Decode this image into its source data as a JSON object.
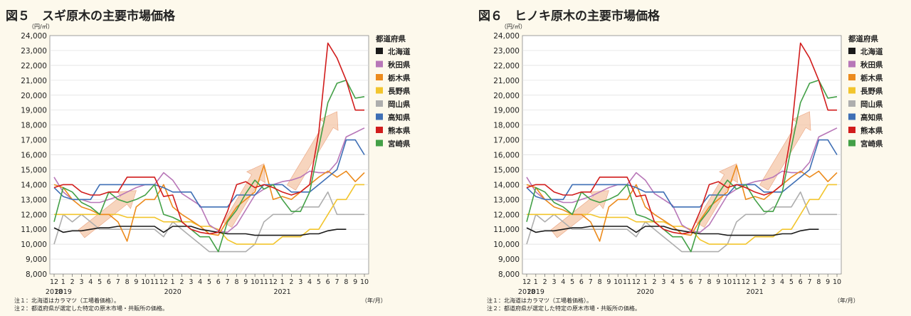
{
  "notes": [
    "注１：北海道はカラマツ（工場着価格）。",
    "注２：都道府県が選定した特定の原木市場・共販所の価格。"
  ],
  "colors": {
    "北海道": "#1a1a1a",
    "秋田県": "#b877b8",
    "栃木県": "#ec8b1d",
    "長野県": "#f2c52d",
    "岡山県": "#aeaeae",
    "高知県": "#3f6fb5",
    "熊本県": "#d11c1c",
    "宮崎県": "#43a047",
    "arrow": "#f4c7a8",
    "grid": "#dddddd"
  },
  "chart_data": [
    {
      "type": "line",
      "title": "図５　スギ原木の主要市場価格",
      "unit_label": "（円/㎥）",
      "xunit_label": "（年/月）",
      "legend_title": "都道府県",
      "legend_position": "right",
      "ylim": [
        8000,
        24000
      ],
      "yticks": [
        "8,000",
        "9,000",
        "10,000",
        "11,000",
        "12,000",
        "13,000",
        "14,000",
        "15,000",
        "16,000",
        "17,000",
        "18,000",
        "19,000",
        "20,000",
        "21,000",
        "22,000",
        "23,000",
        "24,000"
      ],
      "x_month_labels": [
        "12",
        "1",
        "2",
        "3",
        "4",
        "5",
        "6",
        "7",
        "8",
        "9",
        "10",
        "11",
        "12",
        "1",
        "2",
        "3",
        "4",
        "5",
        "6",
        "7",
        "8",
        "9",
        "10",
        "11",
        "12",
        "1",
        "2",
        "3",
        "4",
        "5",
        "6",
        "7",
        "8",
        "9",
        "10"
      ],
      "x_year_labels": [
        {
          "label": "2018",
          "index": 0
        },
        {
          "label": "2019",
          "index": 1
        },
        {
          "label": "2020",
          "index": 13
        },
        {
          "label": "2021",
          "index": 25
        }
      ],
      "series": [
        {
          "name": "北海道",
          "values": [
            11100,
            10800,
            10900,
            10900,
            11000,
            11100,
            11100,
            11200,
            11200,
            11200,
            11200,
            11200,
            10800,
            11200,
            11200,
            11200,
            11000,
            10900,
            10800,
            10700,
            10700,
            10700,
            10600,
            10600,
            10600,
            10600,
            10600,
            10600,
            10700,
            10700,
            10900,
            11000,
            11000,
            null,
            null
          ]
        },
        {
          "name": "秋田県",
          "values": [
            14500,
            13500,
            13000,
            13000,
            12800,
            12800,
            13000,
            13200,
            13500,
            13800,
            14000,
            14000,
            14800,
            14300,
            13400,
            13000,
            12600,
            11300,
            10900,
            10800,
            11300,
            12300,
            13300,
            13700,
            14000,
            14200,
            14300,
            14500,
            14900,
            14800,
            14800,
            15500,
            17200,
            17500,
            17800
          ]
        },
        {
          "name": "栃木県",
          "values": [
            14000,
            13800,
            13000,
            12500,
            12300,
            12000,
            12000,
            11500,
            10200,
            12500,
            13000,
            13000,
            14000,
            12500,
            12000,
            11600,
            11200,
            10700,
            10600,
            11600,
            12500,
            13000,
            13500,
            15300,
            13000,
            13200,
            13000,
            13500,
            14000,
            14500,
            14900,
            14500,
            14900,
            14200,
            14800
          ]
        },
        {
          "name": "長野県",
          "values": [
            12000,
            12000,
            12000,
            12000,
            12000,
            12000,
            12000,
            12000,
            11800,
            11800,
            11800,
            11800,
            11500,
            11500,
            11500,
            11500,
            11200,
            11200,
            11000,
            10300,
            10000,
            10000,
            10000,
            10000,
            10000,
            10500,
            10500,
            10500,
            11000,
            11000,
            12000,
            13000,
            13000,
            14000,
            14000
          ]
        },
        {
          "name": "岡山県",
          "values": [
            10000,
            12000,
            11500,
            12000,
            11500,
            11000,
            11000,
            11000,
            11000,
            11000,
            11000,
            11000,
            10500,
            11500,
            11000,
            10500,
            10000,
            9500,
            9500,
            9500,
            9500,
            9500,
            10000,
            11500,
            12000,
            12000,
            12000,
            12500,
            12500,
            12500,
            13500,
            12000,
            12000,
            12000,
            12000
          ]
        },
        {
          "name": "高知県",
          "values": [
            13800,
            13200,
            13000,
            13000,
            13000,
            14000,
            14000,
            14000,
            14000,
            14000,
            14000,
            14000,
            13800,
            13500,
            13500,
            13500,
            12500,
            12500,
            12500,
            12500,
            13300,
            13300,
            13300,
            14000,
            14000,
            14000,
            13500,
            13500,
            13500,
            14000,
            14500,
            15000,
            17000,
            17000,
            16000
          ]
        },
        {
          "name": "熊本県",
          "values": [
            13800,
            14000,
            14000,
            13500,
            13300,
            13300,
            13500,
            13500,
            14500,
            14500,
            14500,
            14500,
            13200,
            13300,
            11500,
            11000,
            10800,
            10700,
            10800,
            12200,
            14000,
            14200,
            13800,
            14000,
            13800,
            13500,
            13300,
            13500,
            14000,
            17500,
            23500,
            22500,
            21000,
            19000,
            19000
          ]
        },
        {
          "name": "宮崎県",
          "values": [
            11500,
            13800,
            13500,
            12800,
            12500,
            12000,
            13500,
            13000,
            12800,
            13000,
            13300,
            14000,
            12000,
            11800,
            11500,
            11000,
            10500,
            10500,
            9500,
            11500,
            12300,
            13400,
            14300,
            13700,
            14000,
            13000,
            12200,
            12200,
            13500,
            16500,
            19500,
            20800,
            21000,
            19800,
            19900
          ]
        }
      ]
    },
    {
      "type": "line",
      "title": "図６　ヒノキ原木の主要市場価格",
      "unit_label": "（円/㎥）",
      "xunit_label": "（年/月）",
      "legend_title": "都道府県",
      "legend_position": "right",
      "ylim": [
        8000,
        24000
      ],
      "yticks": [
        "8,000",
        "9,000",
        "10,000",
        "11,000",
        "12,000",
        "13,000",
        "14,000",
        "15,000",
        "16,000",
        "17,000",
        "18,000",
        "19,000",
        "20,000",
        "21,000",
        "22,000",
        "23,000",
        "24,000"
      ],
      "x_month_labels": [
        "12",
        "1",
        "2",
        "3",
        "4",
        "5",
        "6",
        "7",
        "8",
        "9",
        "10",
        "11",
        "12",
        "1",
        "2",
        "3",
        "4",
        "5",
        "6",
        "7",
        "8",
        "9",
        "10",
        "11",
        "12",
        "1",
        "2",
        "3",
        "4",
        "5",
        "6",
        "7",
        "8",
        "9",
        "10"
      ],
      "x_year_labels": [
        {
          "label": "2018",
          "index": 0
        },
        {
          "label": "2019",
          "index": 1
        },
        {
          "label": "2020",
          "index": 13
        },
        {
          "label": "2021",
          "index": 25
        }
      ],
      "series": [
        {
          "name": "北海道",
          "values": [
            11100,
            10800,
            10900,
            10900,
            11000,
            11100,
            11100,
            11200,
            11200,
            11200,
            11200,
            11200,
            10800,
            11200,
            11200,
            11200,
            11000,
            10900,
            10800,
            10700,
            10700,
            10700,
            10600,
            10600,
            10600,
            10600,
            10600,
            10600,
            10700,
            10700,
            10900,
            11000,
            11000,
            null,
            null
          ]
        },
        {
          "name": "秋田県",
          "values": [
            14500,
            13500,
            13000,
            13000,
            12800,
            12800,
            13000,
            13200,
            13500,
            13800,
            14000,
            14000,
            14800,
            14300,
            13400,
            13000,
            12600,
            11300,
            10900,
            10800,
            11300,
            12300,
            13300,
            13700,
            14000,
            14200,
            14300,
            14500,
            14900,
            14800,
            14800,
            15500,
            17200,
            17500,
            17800
          ]
        },
        {
          "name": "栃木県",
          "values": [
            14000,
            13800,
            13000,
            12500,
            12300,
            12000,
            12000,
            11500,
            10200,
            12500,
            13000,
            13000,
            14000,
            12500,
            12000,
            11600,
            11200,
            10700,
            10600,
            11600,
            12500,
            13000,
            13500,
            15300,
            13000,
            13200,
            13000,
            13500,
            14000,
            14500,
            14900,
            14500,
            14900,
            14200,
            14800
          ]
        },
        {
          "name": "長野県",
          "values": [
            12000,
            12000,
            12000,
            12000,
            12000,
            12000,
            12000,
            12000,
            11800,
            11800,
            11800,
            11800,
            11500,
            11500,
            11500,
            11500,
            11200,
            11200,
            11000,
            10300,
            10000,
            10000,
            10000,
            10000,
            10000,
            10500,
            10500,
            10500,
            11000,
            11000,
            12000,
            13000,
            13000,
            14000,
            14000
          ]
        },
        {
          "name": "岡山県",
          "values": [
            10000,
            12000,
            11500,
            12000,
            11500,
            11000,
            11000,
            11000,
            11000,
            11000,
            11000,
            11000,
            10500,
            11500,
            11000,
            10500,
            10000,
            9500,
            9500,
            9500,
            9500,
            9500,
            10000,
            11500,
            12000,
            12000,
            12000,
            12500,
            12500,
            12500,
            13500,
            12000,
            12000,
            12000,
            12000
          ]
        },
        {
          "name": "高知県",
          "values": [
            13800,
            13200,
            13000,
            13000,
            13000,
            14000,
            14000,
            14000,
            14000,
            14000,
            14000,
            14000,
            13800,
            13500,
            13500,
            13500,
            12500,
            12500,
            12500,
            12500,
            13300,
            13300,
            13300,
            14000,
            14000,
            14000,
            13500,
            13500,
            13500,
            14000,
            14500,
            15000,
            17000,
            17000,
            16000
          ]
        },
        {
          "name": "熊本県",
          "values": [
            13800,
            14000,
            14000,
            13500,
            13300,
            13300,
            13500,
            13500,
            14500,
            14500,
            14500,
            14500,
            13200,
            13300,
            11500,
            11000,
            10800,
            10700,
            10800,
            12200,
            14000,
            14200,
            13800,
            14000,
            13800,
            13500,
            13300,
            13500,
            14000,
            17500,
            23500,
            22500,
            21000,
            19000,
            19000
          ]
        },
        {
          "name": "宮崎県",
          "values": [
            11500,
            13800,
            13500,
            12800,
            12500,
            12000,
            13500,
            13000,
            12800,
            13000,
            13300,
            14000,
            12000,
            11800,
            11500,
            11000,
            10500,
            10500,
            9500,
            11500,
            12300,
            13400,
            14300,
            13700,
            14000,
            13000,
            12200,
            12200,
            13500,
            16500,
            19500,
            20800,
            21000,
            19800,
            19900
          ]
        }
      ]
    }
  ]
}
